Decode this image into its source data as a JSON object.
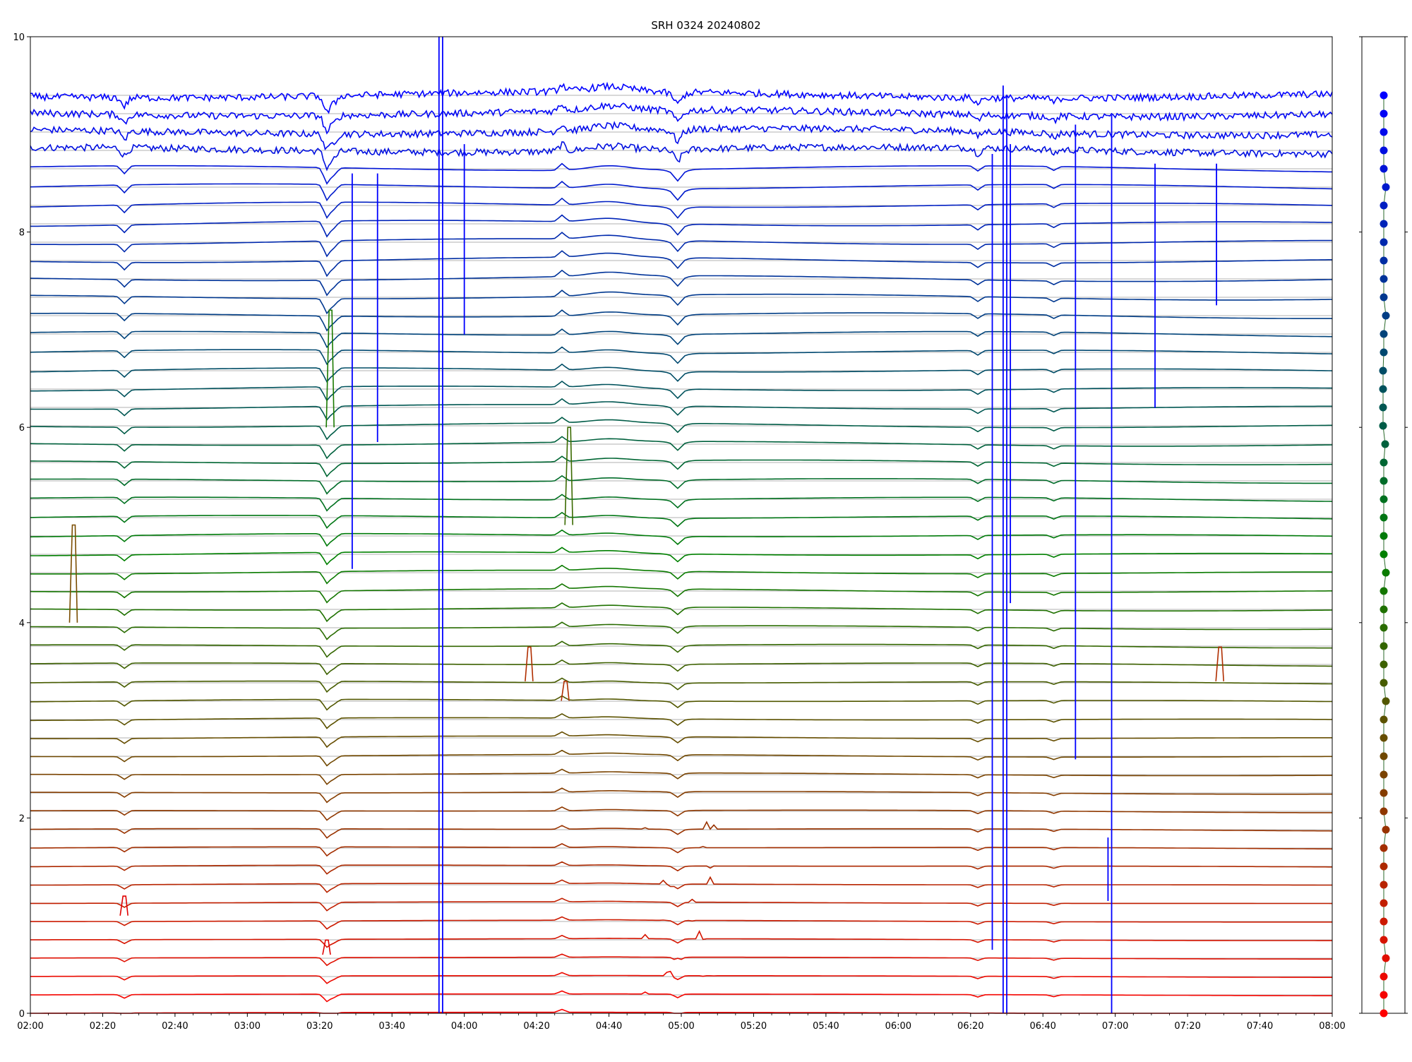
{
  "chart_data": {
    "type": "line",
    "title": "SRH 0324 20240802",
    "xlabel": "",
    "ylabel": "",
    "x_range": [
      "02:00",
      "08:00"
    ],
    "ylim": [
      0,
      10
    ],
    "x_ticks": [
      "02:00",
      "02:20",
      "02:40",
      "03:00",
      "03:20",
      "03:40",
      "04:00",
      "04:20",
      "04:40",
      "05:00",
      "05:20",
      "05:40",
      "06:00",
      "06:20",
      "06:40",
      "07:00",
      "07:20",
      "07:40",
      "08:00"
    ],
    "y_ticks": [
      "0",
      "2",
      "4",
      "6",
      "8",
      "10"
    ],
    "grid": "horizontal",
    "legend": "right-strip",
    "trace_count": 51,
    "trace_spacing": 0.2,
    "trace_base_min": 0.0,
    "trace_base_max": 9.4,
    "color_bottom": "#ff0000",
    "color_mid": "#008000",
    "color_top": "#0000ff",
    "common_dips": [
      {
        "time": "02:26",
        "amplitude": -0.06
      },
      {
        "time": "03:22",
        "amplitude": -0.12
      },
      {
        "time": "03:24",
        "amplitude": -0.05
      },
      {
        "time": "04:27",
        "amplitude": 0.05
      },
      {
        "time": "04:59",
        "amplitude": -0.06
      },
      {
        "time": "06:22",
        "amplitude": -0.04
      },
      {
        "time": "06:43",
        "amplitude": -0.03
      }
    ],
    "vertical_spikes": [
      {
        "time": "03:53",
        "from": 0,
        "to": 10,
        "color": "#0000ff"
      },
      {
        "time": "03:54",
        "from": 0,
        "to": 10,
        "color": "#0000ff"
      },
      {
        "time": "06:29",
        "from": 0,
        "to": 9.5,
        "color": "#0000ff"
      },
      {
        "time": "06:30",
        "from": 0,
        "to": 9.4,
        "color": "#0000ff"
      },
      {
        "time": "06:59",
        "from": 0,
        "to": 9.2,
        "color": "#0000ff"
      },
      {
        "time": "06:26",
        "from": 0.65,
        "to": 8.8,
        "color": "#0000ff"
      },
      {
        "time": "06:31",
        "from": 4.2,
        "to": 8.9,
        "color": "#0000ff"
      },
      {
        "time": "06:49",
        "from": 2.6,
        "to": 9.1,
        "color": "#0000ff"
      },
      {
        "time": "06:58",
        "from": 1.15,
        "to": 1.8,
        "color": "#0000ff"
      },
      {
        "time": "03:29",
        "from": 4.55,
        "to": 8.6,
        "color": "#0000ff"
      },
      {
        "time": "03:36",
        "from": 5.85,
        "to": 8.6,
        "color": "#0000ff"
      },
      {
        "time": "04:00",
        "from": 6.95,
        "to": 8.9,
        "color": "#0000ff"
      },
      {
        "time": "07:11",
        "from": 6.2,
        "to": 8.7,
        "color": "#0000ff"
      },
      {
        "time": "07:28",
        "from": 7.25,
        "to": 8.7,
        "color": "#0000ff"
      }
    ],
    "peaks": [
      {
        "time": "02:12",
        "base": 4.0,
        "height": 1.0,
        "color": "#7a4d00"
      },
      {
        "time": "04:18",
        "base": 3.4,
        "height": 0.35,
        "color": "#b02e00"
      },
      {
        "time": "04:28",
        "base": 3.2,
        "height": 0.2,
        "color": "#b02e00"
      },
      {
        "time": "07:29",
        "base": 3.4,
        "height": 0.35,
        "color": "#b02e00"
      },
      {
        "time": "03:23",
        "base": 6.0,
        "height": 1.2,
        "color": "#1a7a00"
      },
      {
        "time": "04:29",
        "base": 5.0,
        "height": 1.0,
        "color": "#3a6a00"
      },
      {
        "time": "02:26",
        "base": 1.0,
        "height": 0.2,
        "color": "#e00000"
      },
      {
        "time": "03:22",
        "base": 0.6,
        "height": 0.15,
        "color": "#e00000"
      }
    ],
    "noise_region": {
      "start": "04:50",
      "end": "05:09",
      "max_trace": 11
    },
    "top_noise_traces": 4
  }
}
